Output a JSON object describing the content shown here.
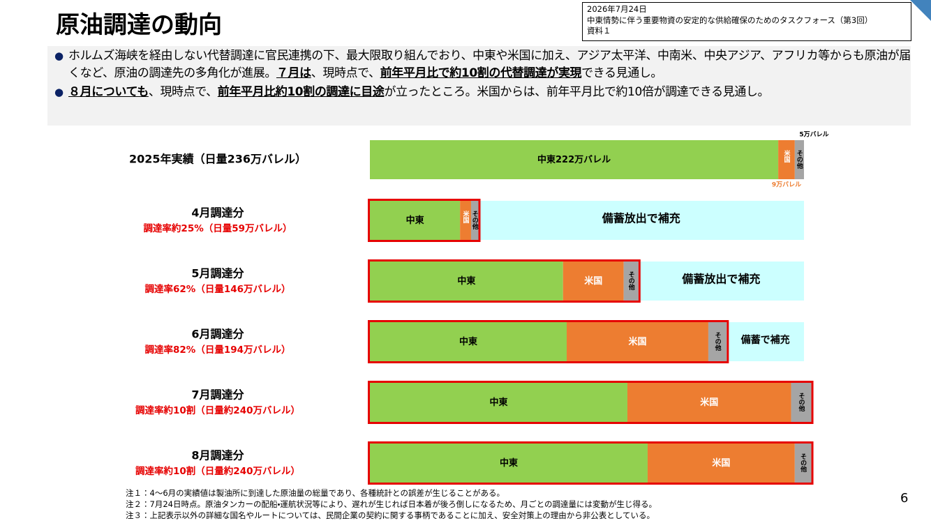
{
  "header": {
    "title": "原油調達の動向",
    "info": [
      "2026年7月24日",
      "中東情勢に伴う重要物資の安定的な供給確保のためのタスクフォース（第3回）",
      "資料１"
    ]
  },
  "bullets": [
    {
      "runs": [
        {
          "text": "ホルムズ海峡を経由しない代替調達に官民連携の下、最大限取り組んでおり、中東や米国に加え、アジア太平洋、中南米、中央アジア、アフリカ等からも原油が届くなど、原油の調達先の多角化が進展。",
          "emphasis": false
        },
        {
          "text": "７月は",
          "emphasis": true
        },
        {
          "text": "、現時点で、",
          "emphasis": false
        },
        {
          "text": "前年平月比で約10割の代替調達が実現",
          "emphasis": true
        },
        {
          "text": "できる見通し。",
          "emphasis": false
        }
      ]
    },
    {
      "runs": [
        {
          "text": "８月についても",
          "emphasis": true
        },
        {
          "text": "、現時点で、",
          "emphasis": false
        },
        {
          "text": "前年平月比約10割の調達に目途",
          "emphasis": true
        },
        {
          "text": "が立ったところ。米国からは、前年平月比で約10倍が調達できる見通し。",
          "emphasis": false
        }
      ]
    }
  ],
  "chart_data": {
    "type": "stacked-bar-horizontal",
    "categories": [
      "2025年実績（日量236万バレル）",
      "4月調達分",
      "5月調達分",
      "6月調達分",
      "7月調達分",
      "8月調達分"
    ],
    "category_notes": [
      null,
      "調達率約25%（日量59万バレル）",
      "調達率62%（日量146万バレル）",
      "調達率82%（日量194万バレル）",
      "調達率約10割（日量約240万バレル）",
      "調達率約10割（日量約240万バレル）"
    ],
    "xlim": [
      0,
      236
    ],
    "series": [
      {
        "name": "中東",
        "color": "#92d050",
        "values": [
          222,
          49,
          105,
          107,
          140,
          151
        ],
        "value_labels": [
          "222万バレル",
          null,
          null,
          null,
          null,
          null
        ]
      },
      {
        "name": "米国",
        "color": "#ed7d31",
        "values": [
          9,
          6,
          33,
          77,
          89,
          80
        ],
        "value_labels": [
          "9万バレル",
          null,
          null,
          null,
          null,
          null
        ]
      },
      {
        "name": "その他",
        "color": "#a5a5a5",
        "values": [
          5,
          4,
          8,
          10,
          11,
          9
        ],
        "value_labels": [
          "5万バレル",
          null,
          null,
          null,
          null,
          null
        ]
      }
    ],
    "fill": {
      "color": "#ccffff",
      "values": [
        null,
        177,
        90,
        42,
        null,
        null
      ],
      "labels": [
        null,
        "備蓄放出で補充",
        "備蓄放出で補充",
        "備蓄で補充",
        null,
        null
      ]
    },
    "outlined": [
      false,
      true,
      true,
      true,
      true,
      true
    ],
    "outline_color": "#e60000"
  },
  "notes": [
    "注１：4～6月の実績値は製油所に到達した原油量の総量であり、各種統計との誤差が生じることがある。",
    "注２：7月24日時点。原油タンカーの配船・運航状況等により、遅れが生じれば日本着が後ろ倒しになるため、月ごとの調達量には変動が生じ得る。",
    "注３：上記表示以外の詳細な国名やルートについては、民間企業の契約に関する事柄であることに加え、安全対策上の理由から非公表としている。"
  ],
  "page_number": "6"
}
